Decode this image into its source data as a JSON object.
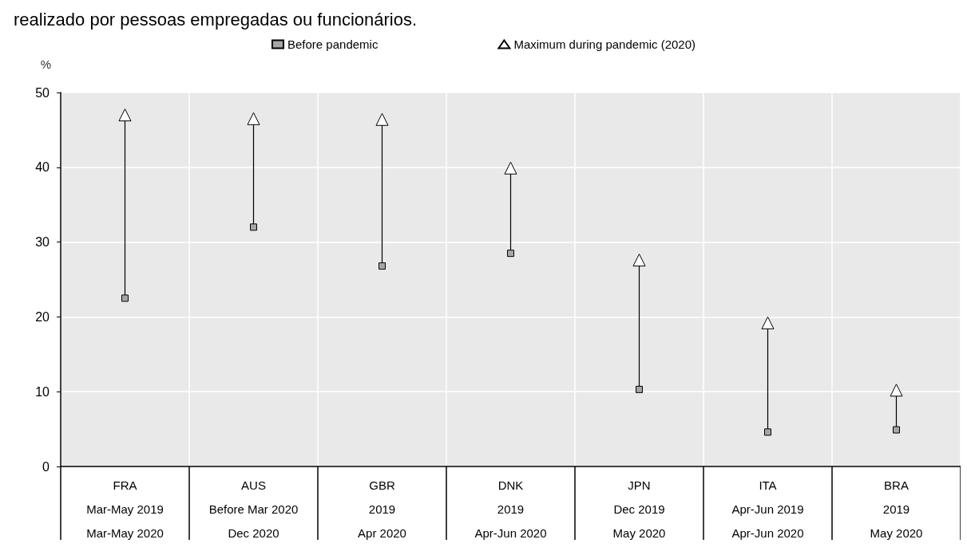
{
  "chart_data": {
    "type": "scatter",
    "title": "realizado por pessoas empregadas ou funcionários.",
    "ylabel": "%",
    "categories": [
      "FRA\nMar-May 2019\nMar-May 2020",
      "AUS\nBefore Mar 2020\nDec 2020",
      "GBR\n2019\nApr 2020",
      "DNK\n2019\nApr-Jun 2020",
      "JPN\nDec 2019\nMay 2020",
      "ITA\nApr-Jun 2019\nApr-Jun 2020",
      "BRA\n2019\nMay 2020"
    ],
    "series": [
      {
        "name": "Before pandemic",
        "color": "#a6a6a6",
        "marker": "square",
        "values": [
          22.5,
          32,
          26.8,
          28.5,
          10.3,
          4.6,
          4.9
        ]
      },
      {
        "name": "Maximum during pandemic (2020)",
        "color": "#ffffff",
        "marker": "triangle",
        "values": [
          47,
          46.5,
          46.4,
          39.9,
          27.6,
          19.2,
          10.2
        ]
      }
    ],
    "ylim": [
      0,
      50
    ],
    "yticks": [
      0,
      10,
      20,
      30,
      40,
      50
    ],
    "grid": true,
    "legend": "top"
  }
}
